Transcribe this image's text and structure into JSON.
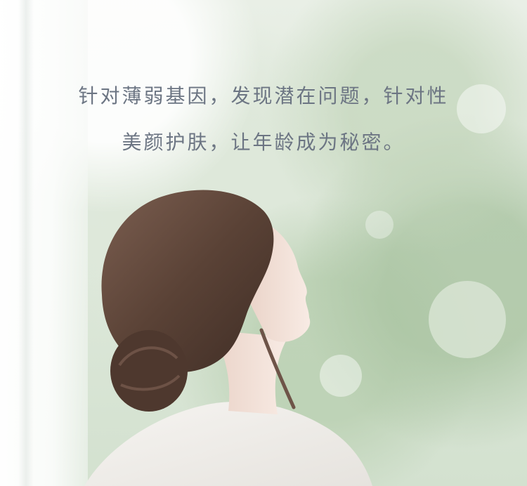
{
  "headline": {
    "line1": "针对薄弱基因，发现潜在问题，针对性",
    "line2": "美颜护肤，让年龄成为秘密。"
  },
  "colors": {
    "text": "#6c7583",
    "hair": "#5a4236",
    "skin": "#f2e1d8",
    "sweater": "#f1eeea",
    "background": "#dfe9dc"
  }
}
